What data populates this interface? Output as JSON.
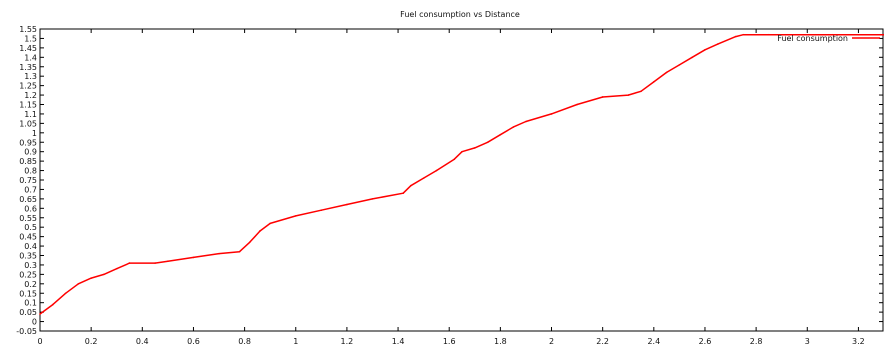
{
  "chart_data": {
    "type": "line",
    "title": "Fuel consumption vs Distance",
    "xlabel": "",
    "ylabel": "",
    "xlim": [
      0,
      3.3
    ],
    "ylim": [
      -0.05,
      1.55
    ],
    "x_ticks": [
      0,
      0.2,
      0.4,
      0.6,
      0.8,
      1,
      1.2,
      1.4,
      1.6,
      1.8,
      2,
      2.2,
      2.4,
      2.6,
      2.8,
      3,
      3.2
    ],
    "x_tick_labels": [
      "0",
      "0.2",
      "0.4",
      "0.6",
      "0.8",
      "1",
      "1.2",
      "1.4",
      "1.6",
      "1.8",
      "2",
      "2.2",
      "2.4",
      "2.6",
      "2.8",
      "3",
      "3.2"
    ],
    "y_ticks": [
      -0.05,
      0,
      0.05,
      0.1,
      0.15,
      0.2,
      0.25,
      0.3,
      0.35,
      0.4,
      0.45,
      0.5,
      0.55,
      0.6,
      0.65,
      0.7,
      0.75,
      0.8,
      0.85,
      0.9,
      0.95,
      1,
      1.05,
      1.1,
      1.15,
      1.2,
      1.25,
      1.3,
      1.35,
      1.4,
      1.45,
      1.5,
      1.55
    ],
    "y_tick_labels": [
      "-0.05",
      "0",
      "0.05",
      "0.1",
      "0.15",
      "0.2",
      "0.25",
      "0.3",
      "0.35",
      "0.4",
      "0.45",
      "0.5",
      "0.55",
      "0.6",
      "0.65",
      "0.7",
      "0.75",
      "0.8",
      "0.85",
      "0.9",
      "0.95",
      "1",
      "1.05",
      "1.1",
      "1.15",
      "1.2",
      "1.25",
      "1.3",
      "1.35",
      "1.4",
      "1.45",
      "1.5",
      "1.55"
    ],
    "grid": false,
    "legend_position": "top-right",
    "series": [
      {
        "name": "Fuel consumption",
        "color": "#ff0000",
        "x": [
          0,
          0.05,
          0.1,
          0.15,
          0.2,
          0.25,
          0.3,
          0.35,
          0.45,
          0.5,
          0.6,
          0.7,
          0.78,
          0.82,
          0.86,
          0.9,
          1.0,
          1.1,
          1.2,
          1.3,
          1.42,
          1.45,
          1.5,
          1.55,
          1.62,
          1.65,
          1.7,
          1.75,
          1.8,
          1.85,
          1.9,
          2.0,
          2.1,
          2.2,
          2.3,
          2.35,
          2.4,
          2.45,
          2.5,
          2.55,
          2.6,
          2.65,
          2.72,
          2.75,
          2.85,
          3.0,
          3.1,
          3.2,
          3.3
        ],
        "y": [
          0.04,
          0.09,
          0.15,
          0.2,
          0.23,
          0.25,
          0.28,
          0.31,
          0.31,
          0.32,
          0.34,
          0.36,
          0.37,
          0.42,
          0.48,
          0.52,
          0.56,
          0.59,
          0.62,
          0.65,
          0.68,
          0.72,
          0.76,
          0.8,
          0.86,
          0.9,
          0.92,
          0.95,
          0.99,
          1.03,
          1.06,
          1.1,
          1.15,
          1.19,
          1.2,
          1.22,
          1.27,
          1.32,
          1.36,
          1.4,
          1.44,
          1.47,
          1.51,
          1.52,
          1.52,
          1.52,
          1.52,
          1.52,
          1.52
        ]
      }
    ]
  }
}
